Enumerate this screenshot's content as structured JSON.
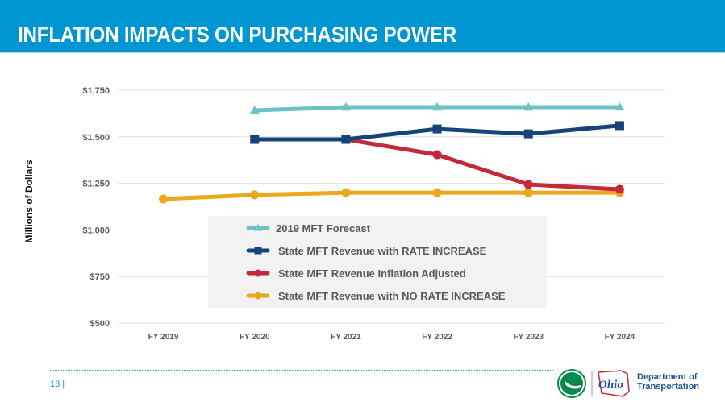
{
  "header": {
    "title": "INFLATION IMPACTS ON PURCHASING POWER"
  },
  "footer": {
    "page_number": "13  |"
  },
  "logo": {
    "ohio_text": "Ohio",
    "dept_line1": "Department of",
    "dept_line2": "Transportation"
  },
  "chart_data": {
    "type": "line",
    "title": "",
    "xlabel": "",
    "ylabel": "Millions of Dollars",
    "categories": [
      "FY 2019",
      "FY 2020",
      "FY 2021",
      "FY 2022",
      "FY 2023",
      "FY  2024"
    ],
    "ylim": [
      500,
      1750
    ],
    "yticks": [
      500,
      750,
      1000,
      1250,
      1500,
      1750
    ],
    "ytick_labels": [
      "$500",
      "$750",
      "$1,000",
      "$1,250",
      "$1,500",
      "$1,750"
    ],
    "grid": true,
    "legend_position": "center",
    "series": [
      {
        "name": "2019 MFT Forecast",
        "color": "#6cc3c5",
        "marker": "triangle",
        "values": [
          null,
          1642,
          1659,
          1659,
          1659,
          1659
        ]
      },
      {
        "name": "State MFT Revenue with RATE INCREASE",
        "color": "#164478",
        "marker": "square",
        "values": [
          null,
          1486,
          1486,
          1542,
          1516,
          1560
        ]
      },
      {
        "name": "State MFT Revenue Inflation Adjusted",
        "color": "#c42a3b",
        "marker": "circle",
        "values": [
          null,
          1486,
          1486,
          1404,
          1244,
          1218
        ]
      },
      {
        "name": "State MFT Revenue with NO RATE INCREASE",
        "color": "#eba81b",
        "marker": "circle",
        "values": [
          1166,
          1188,
          1200,
          1200,
          1200,
          1200
        ]
      }
    ]
  }
}
